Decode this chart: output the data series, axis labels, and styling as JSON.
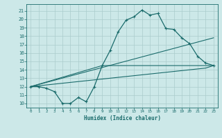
{
  "xlabel": "Humidex (Indice chaleur)",
  "xlim": [
    -0.5,
    23.5
  ],
  "ylim": [
    9.5,
    21.8
  ],
  "yticks": [
    10,
    11,
    12,
    13,
    14,
    15,
    16,
    17,
    18,
    19,
    20,
    21
  ],
  "xticks": [
    0,
    1,
    2,
    3,
    4,
    5,
    6,
    7,
    8,
    9,
    10,
    11,
    12,
    13,
    14,
    15,
    16,
    17,
    18,
    19,
    20,
    21,
    22,
    23
  ],
  "bg_color": "#cce8e8",
  "line_color": "#1a6b6b",
  "grid_color": "#b0d8d8",
  "line1_x": [
    0,
    1,
    2,
    3,
    4,
    5,
    6,
    7,
    8,
    9,
    10,
    11,
    12,
    13,
    14,
    15,
    16,
    17,
    18,
    19,
    20,
    21,
    22,
    23
  ],
  "line1_y": [
    12.0,
    12.0,
    11.8,
    11.4,
    10.0,
    10.0,
    10.7,
    10.2,
    12.0,
    14.5,
    16.3,
    18.5,
    19.9,
    20.3,
    21.1,
    20.5,
    20.7,
    18.9,
    18.8,
    17.8,
    17.1,
    15.6,
    14.8,
    14.5
  ],
  "line2_x": [
    0,
    22,
    23
  ],
  "line2_y": [
    12.0,
    14.2,
    14.5
  ],
  "line3_x": [
    0,
    9,
    23
  ],
  "line3_y": [
    12.0,
    14.5,
    14.5
  ],
  "line4_x": [
    0,
    23
  ],
  "line4_y": [
    12.0,
    17.8
  ],
  "figsize": [
    3.2,
    2.0
  ],
  "dpi": 100
}
